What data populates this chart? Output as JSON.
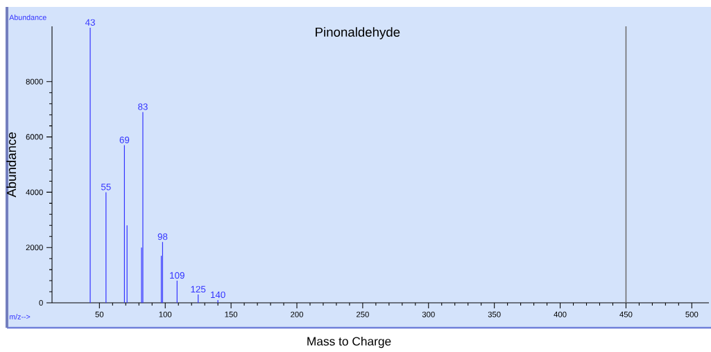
{
  "chart_data": {
    "type": "bar",
    "title": "Pinonaldehyde",
    "xlabel": "Mass to Charge",
    "ylabel": "Abundance",
    "x": [
      43,
      55,
      69,
      71,
      82,
      83,
      97,
      98,
      109,
      125,
      140
    ],
    "values": [
      9950,
      4000,
      5700,
      2800,
      2000,
      6900,
      1700,
      2200,
      800,
      300,
      100
    ],
    "color": "#3333ff",
    "xlim": [
      14,
      513
    ],
    "ylim": [
      0,
      10000
    ],
    "xticks": [
      50,
      100,
      150,
      200,
      250,
      300,
      350,
      400,
      450,
      500
    ],
    "yticks": [
      0,
      2000,
      4000,
      6000,
      8000
    ],
    "ref_lines": [
      {
        "axis": "x",
        "value": 450,
        "color": "#707070"
      }
    ],
    "annotations": [
      "Abundance",
      "m/z-->",
      {
        "text": "43",
        "x": 43,
        "y": 9950
      },
      {
        "text": "55",
        "x": 55,
        "y": 4000
      },
      {
        "text": "69",
        "x": 69,
        "y": 5700
      },
      {
        "text": "83",
        "x": 83,
        "y": 6900
      },
      {
        "text": "98",
        "x": 98,
        "y": 2200
      },
      {
        "text": "109",
        "x": 109,
        "y": 800
      },
      {
        "text": "125",
        "x": 125,
        "y": 300
      },
      {
        "text": "140",
        "x": 140,
        "y": 100
      }
    ]
  }
}
